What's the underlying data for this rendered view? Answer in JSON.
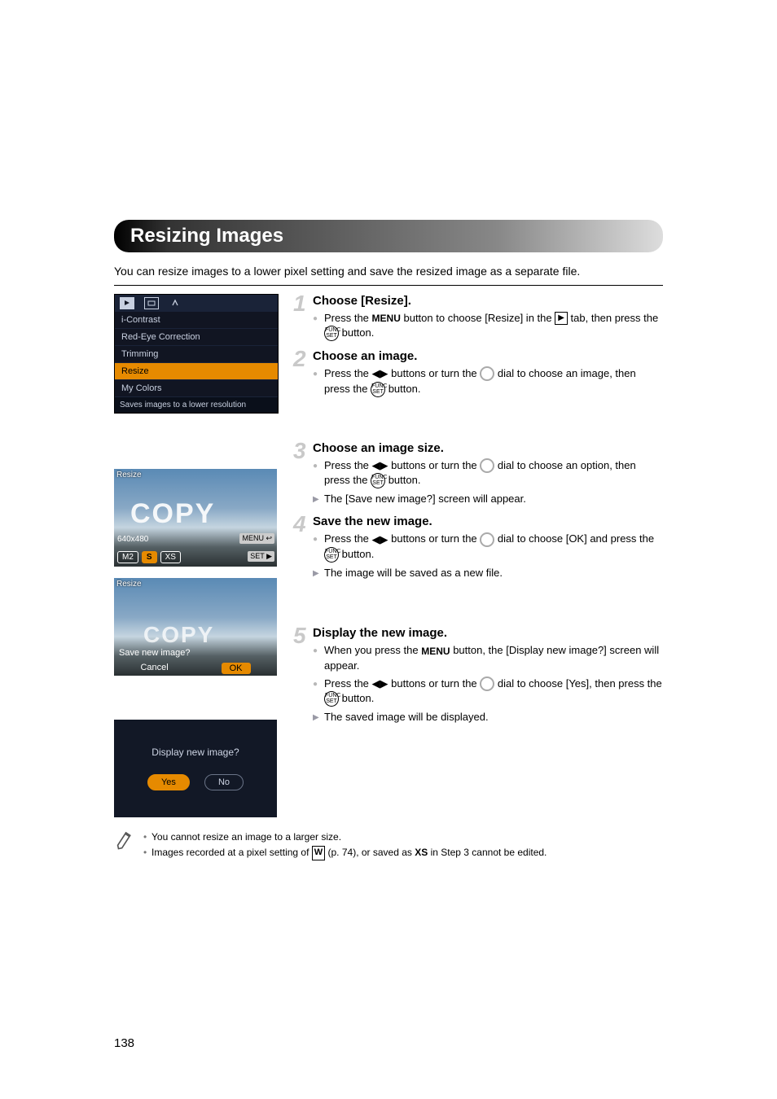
{
  "section": {
    "title": "Resizing Images",
    "intro": "You can resize images to a lower pixel setting and save the resized image as a separate file."
  },
  "camMenu": {
    "items": [
      "i-Contrast",
      "Red-Eye Correction",
      "Trimming",
      "Resize",
      "My Colors"
    ],
    "selectedIndex": 3,
    "status": "Saves images to a lower resolution"
  },
  "sky1": {
    "topLabel": "Resize",
    "resolution": "640x480",
    "options": [
      "M2",
      "S",
      "XS"
    ],
    "selectedIndex": 1,
    "menuLabel": "MENU ↩",
    "setLabel": "SET ▶"
  },
  "sky2": {
    "topLabel": "Resize",
    "question": "Save new image?",
    "cancel": "Cancel",
    "ok": "OK"
  },
  "dialog": {
    "question": "Display new image?",
    "yes": "Yes",
    "no": "No"
  },
  "steps": [
    {
      "num": "1",
      "title": "Choose [Resize].",
      "body": [
        {
          "t": "Press the |MENU| button to choose [Resize] in the |PLAY| tab, then press the |FUNC| button.",
          "cls": ""
        }
      ]
    },
    {
      "num": "2",
      "title": "Choose an image.",
      "body": [
        {
          "t": "Press the |LR| buttons or turn the |DIAL| dial to choose an image, then press the |FUNC| button.",
          "cls": ""
        }
      ]
    },
    {
      "num": "3",
      "title": "Choose an image size.",
      "body": [
        {
          "t": "Press the |LR| buttons or turn the |DIAL| dial to choose an option, then press the |FUNC| button.",
          "cls": ""
        },
        {
          "t": "The [Save new image?] screen will appear.",
          "cls": "arrow"
        }
      ]
    },
    {
      "num": "4",
      "title": "Save the new image.",
      "body": [
        {
          "t": "Press the |LR| buttons or turn the |DIAL| dial to choose [OK] and press the |FUNC| button.",
          "cls": ""
        },
        {
          "t": "The image will be saved as a new file.",
          "cls": "arrow"
        }
      ]
    },
    {
      "num": "5",
      "title": "Display the new image.",
      "body": [
        {
          "t": "When you press the |MENU| button, the [Display new image?] screen will appear.",
          "cls": ""
        },
        {
          "t": "Press the |LR| buttons or turn the |DIAL| dial to choose [Yes], then press the |FUNC| button.",
          "cls": ""
        },
        {
          "t": "The saved image will be displayed.",
          "cls": "arrow"
        }
      ]
    }
  ],
  "notes": {
    "note1": "You cannot resize an image to a larger size.",
    "note2a": "Images recorded at a pixel setting of ",
    "note2b": " (p. 74), or saved as ",
    "note2c": " in Step 3 cannot be edited."
  },
  "pageNumber": "138",
  "watermark": "COPY"
}
